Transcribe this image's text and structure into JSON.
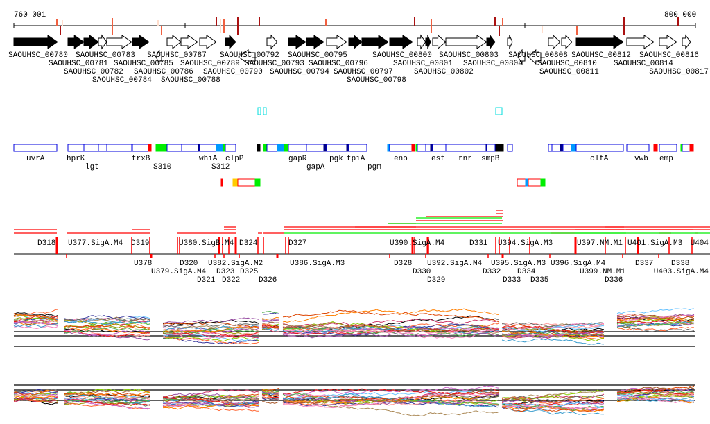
{
  "ruler": {
    "start_label": "760 001",
    "end_label": "800 000"
  },
  "genes": [
    "SAOUHSC_00780",
    "SAOUHSC_00783",
    "SAOUHSC_00789",
    "SAOUHSC_00793",
    "SAOUHSC_00796",
    "SAOUHSC_00800",
    "SAOUHSC_00802",
    "SAOUHSC_00811",
    "SAOUHSC_00814",
    "SAOUHSC_00781",
    "SAOUHSC_00784",
    "SAOUHSC_00787",
    "SAOUHSC_00790",
    "SAOUHSC_00794",
    "SAOUHSC_00797",
    "SAOUHSC_00801",
    "SAOUHSC_00803",
    "SAOUHSC_00812",
    "SAOUHSC_00816",
    "SAOUHSC_00782",
    "SAOUHSC_00785",
    "SAOUHSC_00786",
    "SAOUHSC_00788",
    "SAOUHSC_00795",
    "SAOUHSC_00798",
    "SAOUHSC_00804",
    "SAOUHSC_00808",
    "SAOUHSC_00810",
    "SAOUHSC_00817",
    "SAOUHSC_00792"
  ],
  "operon_labels": [
    "uvrA",
    "hprK",
    "lgt",
    "trxB",
    "S310",
    "whiA",
    "S312",
    "clpP",
    "gapR",
    "gapA",
    "pgk",
    "tpiA",
    "pgm",
    "eno",
    "est",
    "rnr",
    "smpB",
    "clfA",
    "vwb",
    "emp"
  ],
  "transcript_labels": [
    "D318",
    "U377.SigA.M4",
    "U378",
    "D319",
    "U379.SigA.M4",
    "U380.SigB.M4",
    "D320",
    "D321",
    "D323",
    "D322",
    "D324",
    "D325",
    "D326",
    "U382.SigA.M2",
    "D327",
    "U386.SigA.M3",
    "U390.SigA.M4",
    "D328",
    "D330",
    "U392.SigA.M4",
    "D329",
    "D331",
    "D332",
    "U394.SigA.M3",
    "D333",
    "D334",
    "D335",
    "U395.SigA.M3",
    "U396.SigA.M4",
    "U397.NM.M1",
    "D336",
    "U399.NM.M1",
    "U401.SigA.M3",
    "D337",
    "U403.SigA.M4",
    "D338",
    "U404"
  ],
  "colors": {
    "gene_fill": "#000000",
    "operon_border": "#0000dd",
    "promoter_red": "#ff0000",
    "terminator_green": "#00ee00",
    "highlight_cyan": "#00dddd",
    "snp_dark": "#aa1111",
    "snp_light": "#ffddcc"
  },
  "icons": {
    "gene_forward": "arrow-right",
    "gene_reverse": "arrow-left"
  }
}
